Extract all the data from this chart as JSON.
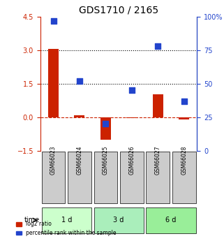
{
  "title": "GDS1710 / 2165",
  "samples": [
    "GSM66023",
    "GSM66024",
    "GSM66025",
    "GSM66026",
    "GSM66027",
    "GSM66028"
  ],
  "groups": [
    {
      "label": "1 d",
      "indices": [
        0,
        1
      ],
      "color": "#aaffaa"
    },
    {
      "label": "3 d",
      "indices": [
        2,
        3
      ],
      "color": "#66dd66"
    },
    {
      "label": "6 d",
      "indices": [
        4,
        5
      ],
      "color": "#88ee88"
    }
  ],
  "log2_ratio": [
    3.05,
    0.1,
    -1.02,
    -0.05,
    1.02,
    -0.1
  ],
  "percentile_rank": [
    97,
    52,
    20,
    45,
    78,
    37
  ],
  "left_ylim": [
    -1.5,
    4.5
  ],
  "right_ylim": [
    0,
    100
  ],
  "left_yticks": [
    -1.5,
    0,
    1.5,
    3,
    4.5
  ],
  "right_yticks": [
    0,
    25,
    50,
    75,
    100
  ],
  "right_yticklabels": [
    "0",
    "25",
    "50",
    "75",
    "100%"
  ],
  "hlines_dotted": [
    1.5,
    3.0
  ],
  "hline_dashed": 0.0,
  "bar_color": "#cc2200",
  "scatter_color": "#2244cc",
  "bar_width": 0.4,
  "scatter_size": 40,
  "left_tick_color": "#cc2200",
  "right_tick_color": "#2244cc",
  "group_colors": [
    "#ccffcc",
    "#aaeebb",
    "#99ee99"
  ],
  "sample_box_color": "#cccccc",
  "time_label": "time",
  "legend_bar_label": "log2 ratio",
  "legend_scatter_label": "percentile rank within the sample"
}
